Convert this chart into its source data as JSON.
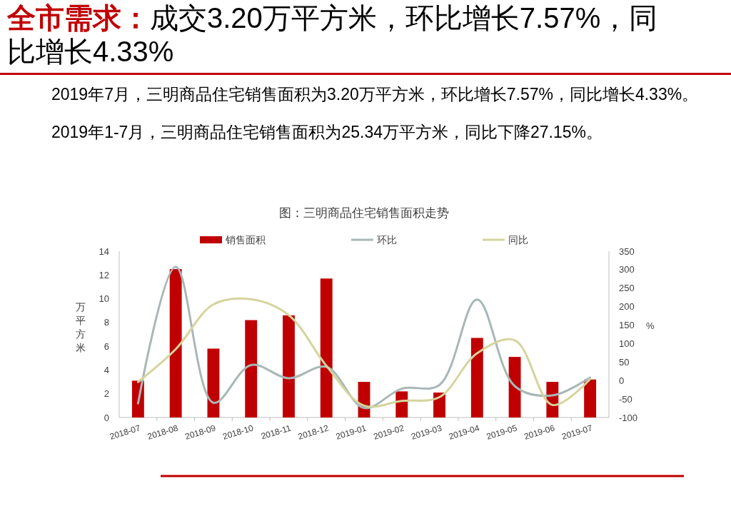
{
  "chart_data": {
    "type": "bar",
    "title": "全市需求：成交3.20万平方米，环比增长7.57%，同比增长4.33%",
    "subtitle": "图：三明商品住宅销售面积走势",
    "annotations": [
      "2019年7月，三明商品住宅销售面积为3.20万平方米，环比增长7.57%，同比增长4.33%。",
      "2019年1-7月，三明商品住宅销售面积为25.34万平方米，同比下降27.15%。"
    ],
    "ylabel": "万平方米",
    "y2label": "%",
    "categories": [
      "2018-07",
      "2018-08",
      "2018-09",
      "2018-10",
      "2018-11",
      "2018-12",
      "2019-01",
      "2019-02",
      "2019-03",
      "2019-04",
      "2019-05",
      "2019-06",
      "2019-07"
    ],
    "series": [
      {
        "name": "销售面积",
        "color": "#c00000",
        "values": [
          3.1,
          12.5,
          5.8,
          8.2,
          8.6,
          11.7,
          3.0,
          2.2,
          2.1,
          6.7,
          5.1,
          3.0,
          3.2
        ]
      },
      {
        "name": "环比",
        "type": "line",
        "axis": "y2",
        "color": "#a9b7b7",
        "values": [
          -62,
          308,
          -60,
          42,
          6,
          37,
          -74,
          -22,
          -12,
          219,
          -15,
          -40,
          8
        ]
      },
      {
        "name": "同比",
        "type": "line",
        "axis": "y2",
        "color": "#d5d49e",
        "values": [
          -4,
          85,
          206,
          220,
          177,
          40,
          -68,
          -55,
          -45,
          74,
          109,
          -66,
          4
        ]
      }
    ],
    "ylim": [
      0,
      14
    ],
    "yticks": [
      0,
      2,
      4,
      6,
      8,
      10,
      12,
      14
    ],
    "y2lim": [
      -100,
      350
    ],
    "y2ticks": [
      -100,
      -50,
      0,
      50,
      100,
      150,
      200,
      250,
      300,
      350
    ],
    "legend": "top"
  }
}
